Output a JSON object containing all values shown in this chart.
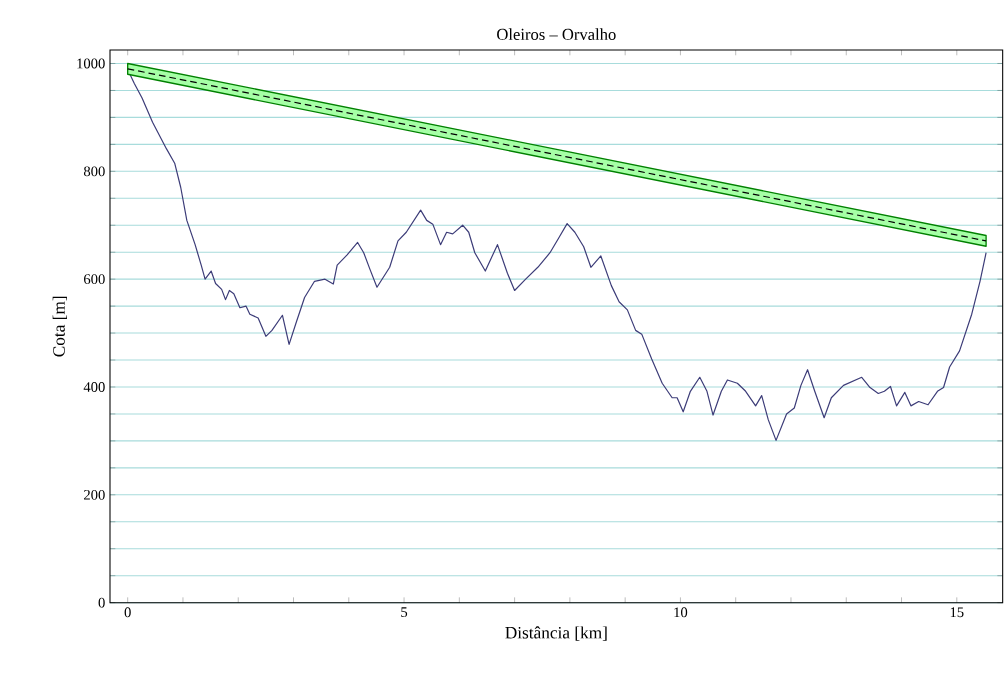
{
  "chart_data": {
    "type": "line",
    "title": "Oleiros – Orvalho",
    "xlabel": "Distância [km]",
    "ylabel": "Cota [m]",
    "xlim": [
      -0.32,
      15.83
    ],
    "ylim": [
      0,
      1025
    ],
    "xticks": [
      0,
      {
        "value": 1,
        "label": null
      },
      {
        "value": 2,
        "label": null
      },
      {
        "value": 3,
        "label": null
      },
      {
        "value": 4,
        "label": null
      },
      5,
      {
        "value": 6,
        "label": null
      },
      {
        "value": 7,
        "label": null
      },
      {
        "value": 8,
        "label": null
      },
      {
        "value": 9,
        "label": null
      },
      10,
      {
        "value": 11,
        "label": null
      },
      {
        "value": 12,
        "label": null
      },
      {
        "value": 13,
        "label": null
      },
      {
        "value": 14,
        "label": null
      },
      15
    ],
    "yticks": [
      0,
      {
        "value": 50,
        "label": null
      },
      {
        "value": 100,
        "label": null
      },
      {
        "value": 150,
        "label": null
      },
      200,
      {
        "value": 250,
        "label": null
      },
      {
        "value": 300,
        "label": null
      },
      {
        "value": 350,
        "label": null
      },
      400,
      {
        "value": 450,
        "label": null
      },
      {
        "value": 500,
        "label": null
      },
      {
        "value": 550,
        "label": null
      },
      600,
      {
        "value": 650,
        "label": null
      },
      {
        "value": 700,
        "label": null
      },
      {
        "value": 750,
        "label": null
      },
      800,
      {
        "value": 850,
        "label": null
      },
      {
        "value": 900,
        "label": null
      },
      {
        "value": 950,
        "label": null
      },
      1000
    ],
    "grid": "y",
    "series": [
      {
        "color": "#3c3c78",
        "line_style": "solid",
        "x": [
          0,
          0.12,
          0.26,
          0.45,
          0.7,
          0.85,
          0.96,
          1.07,
          1.22,
          1.33,
          1.4,
          1.51,
          1.59,
          1.7,
          1.77,
          1.84,
          1.92,
          2.03,
          2.14,
          2.21,
          2.36,
          2.5,
          2.61,
          2.8,
          2.92,
          3.05,
          3.2,
          3.38,
          3.57,
          3.72,
          3.79,
          3.97,
          4.16,
          4.27,
          4.38,
          4.51,
          4.74,
          4.89,
          5.04,
          5.3,
          5.41,
          5.52,
          5.66,
          5.77,
          5.88,
          6.06,
          6.17,
          6.28,
          6.47,
          6.69,
          6.87,
          7.0,
          7.2,
          7.42,
          7.64,
          7.79,
          7.95,
          8.09,
          8.25,
          8.38,
          8.56,
          8.75,
          8.89,
          9.04,
          9.19,
          9.3,
          9.48,
          9.67,
          9.85,
          9.94,
          10.05,
          10.18,
          10.35,
          10.48,
          10.59,
          10.74,
          10.85,
          11.03,
          11.18,
          11.36,
          11.47,
          11.59,
          11.73,
          11.92,
          12.06,
          12.18,
          12.3,
          12.43,
          12.6,
          12.73,
          12.95,
          13.28,
          13.43,
          13.58,
          13.69,
          13.8,
          13.91,
          14.06,
          14.17,
          14.31,
          14.48,
          14.65,
          14.76,
          14.87,
          15.05,
          15.27,
          15.42,
          15.53
        ],
        "values": [
          989,
          963,
          936,
          891,
          842,
          815,
          770,
          709,
          664,
          626,
          600,
          615,
          592,
          581,
          562,
          579,
          573,
          547,
          550,
          535,
          528,
          494,
          505,
          533,
          479,
          520,
          566,
          596,
          600,
          591,
          626,
          645,
          668,
          649,
          619,
          585,
          622,
          671,
          687,
          728,
          709,
          702,
          664,
          687,
          684,
          700,
          687,
          649,
          615,
          664,
          611,
          579,
          600,
          622,
          649,
          675,
          703,
          687,
          660,
          622,
          643,
          588,
          558,
          543,
          505,
          498,
          452,
          407,
          380,
          380,
          354,
          392,
          418,
          392,
          348,
          392,
          413,
          407,
          392,
          365,
          384,
          339,
          301,
          350,
          361,
          403,
          432,
          392,
          343,
          380,
          403,
          418,
          399,
          388,
          392,
          401,
          365,
          390,
          365,
          373,
          367,
          392,
          399,
          437,
          467,
          535,
          596,
          649
        ]
      },
      {
        "color": "#000000",
        "line_style": "dashed",
        "x": [
          0,
          15.53
        ],
        "values": [
          990,
          671
        ],
        "lower": [
          980,
          661
        ],
        "upper": [
          1000,
          681
        ]
      }
    ]
  }
}
